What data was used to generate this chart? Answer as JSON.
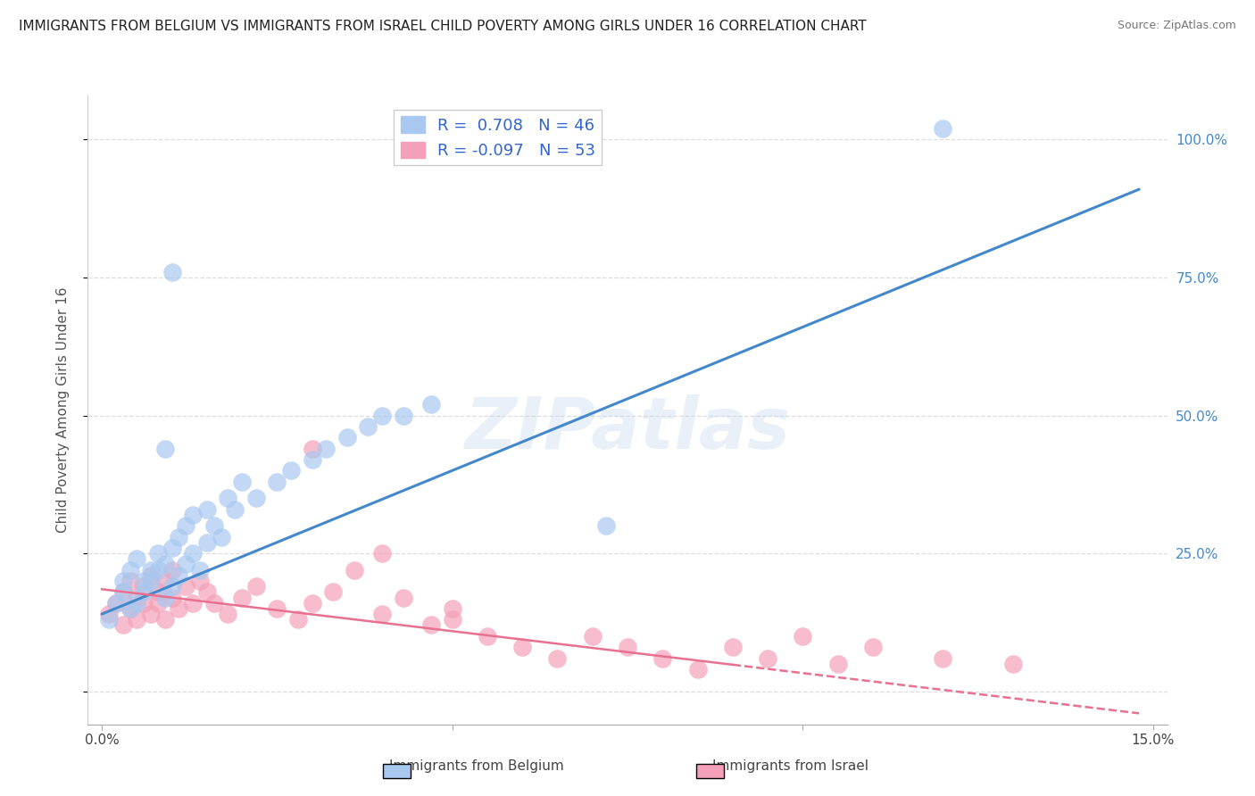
{
  "title": "IMMIGRANTS FROM BELGIUM VS IMMIGRANTS FROM ISRAEL CHILD POVERTY AMONG GIRLS UNDER 16 CORRELATION CHART",
  "source": "Source: ZipAtlas.com",
  "ylabel": "Child Poverty Among Girls Under 16",
  "xmin": 0.0,
  "xmax": 0.15,
  "ymin": -0.06,
  "ymax": 1.08,
  "yticks": [
    0.0,
    0.25,
    0.5,
    0.75,
    1.0
  ],
  "ytick_labels": [
    "",
    "25.0%",
    "50.0%",
    "75.0%",
    "100.0%"
  ],
  "belgium_R": 0.708,
  "belgium_N": 46,
  "israel_R": -0.097,
  "israel_N": 53,
  "belgium_color": "#A8C8F0",
  "israel_color": "#F4A0B8",
  "belgium_line_color": "#4488CC",
  "israel_line_color": "#E87090",
  "watermark_text": "ZIPatlas",
  "legend_R_color": "#3366CC",
  "background_color": "#FFFFFF",
  "grid_color": "#DDDDDD",
  "title_fontsize": 11,
  "belgium_line_x0": 0.0,
  "belgium_line_y0": 0.14,
  "belgium_line_x1": 0.148,
  "belgium_line_y1": 0.91,
  "israel_line_x0": 0.0,
  "israel_line_y0": 0.185,
  "israel_line_x1": 0.148,
  "israel_line_y1": -0.04,
  "belgium_scatter_x": [
    0.001,
    0.002,
    0.003,
    0.003,
    0.004,
    0.004,
    0.005,
    0.005,
    0.006,
    0.006,
    0.007,
    0.007,
    0.008,
    0.008,
    0.009,
    0.009,
    0.01,
    0.01,
    0.011,
    0.011,
    0.012,
    0.012,
    0.013,
    0.013,
    0.014,
    0.015,
    0.015,
    0.016,
    0.017,
    0.018,
    0.019,
    0.02,
    0.022,
    0.025,
    0.027,
    0.03,
    0.032,
    0.035,
    0.038,
    0.04,
    0.043,
    0.047,
    0.01,
    0.072,
    0.12,
    0.009
  ],
  "belgium_scatter_y": [
    0.13,
    0.16,
    0.18,
    0.2,
    0.15,
    0.22,
    0.16,
    0.24,
    0.18,
    0.2,
    0.2,
    0.22,
    0.22,
    0.25,
    0.17,
    0.23,
    0.19,
    0.26,
    0.21,
    0.28,
    0.23,
    0.3,
    0.25,
    0.32,
    0.22,
    0.27,
    0.33,
    0.3,
    0.28,
    0.35,
    0.33,
    0.38,
    0.35,
    0.38,
    0.4,
    0.42,
    0.44,
    0.46,
    0.48,
    0.5,
    0.5,
    0.52,
    0.76,
    0.3,
    1.02,
    0.44
  ],
  "israel_scatter_x": [
    0.001,
    0.002,
    0.003,
    0.003,
    0.004,
    0.004,
    0.005,
    0.005,
    0.006,
    0.006,
    0.007,
    0.007,
    0.008,
    0.008,
    0.009,
    0.009,
    0.01,
    0.01,
    0.011,
    0.012,
    0.013,
    0.014,
    0.015,
    0.016,
    0.018,
    0.02,
    0.022,
    0.025,
    0.028,
    0.03,
    0.033,
    0.036,
    0.04,
    0.043,
    0.047,
    0.05,
    0.055,
    0.06,
    0.065,
    0.07,
    0.075,
    0.08,
    0.085,
    0.09,
    0.095,
    0.1,
    0.105,
    0.11,
    0.12,
    0.13,
    0.03,
    0.04,
    0.05
  ],
  "israel_scatter_y": [
    0.14,
    0.16,
    0.18,
    0.12,
    0.15,
    0.2,
    0.17,
    0.13,
    0.19,
    0.16,
    0.21,
    0.14,
    0.18,
    0.16,
    0.2,
    0.13,
    0.17,
    0.22,
    0.15,
    0.19,
    0.16,
    0.2,
    0.18,
    0.16,
    0.14,
    0.17,
    0.19,
    0.15,
    0.13,
    0.16,
    0.18,
    0.22,
    0.14,
    0.17,
    0.12,
    0.15,
    0.1,
    0.08,
    0.06,
    0.1,
    0.08,
    0.06,
    0.04,
    0.08,
    0.06,
    0.1,
    0.05,
    0.08,
    0.06,
    0.05,
    0.44,
    0.25,
    0.13
  ]
}
